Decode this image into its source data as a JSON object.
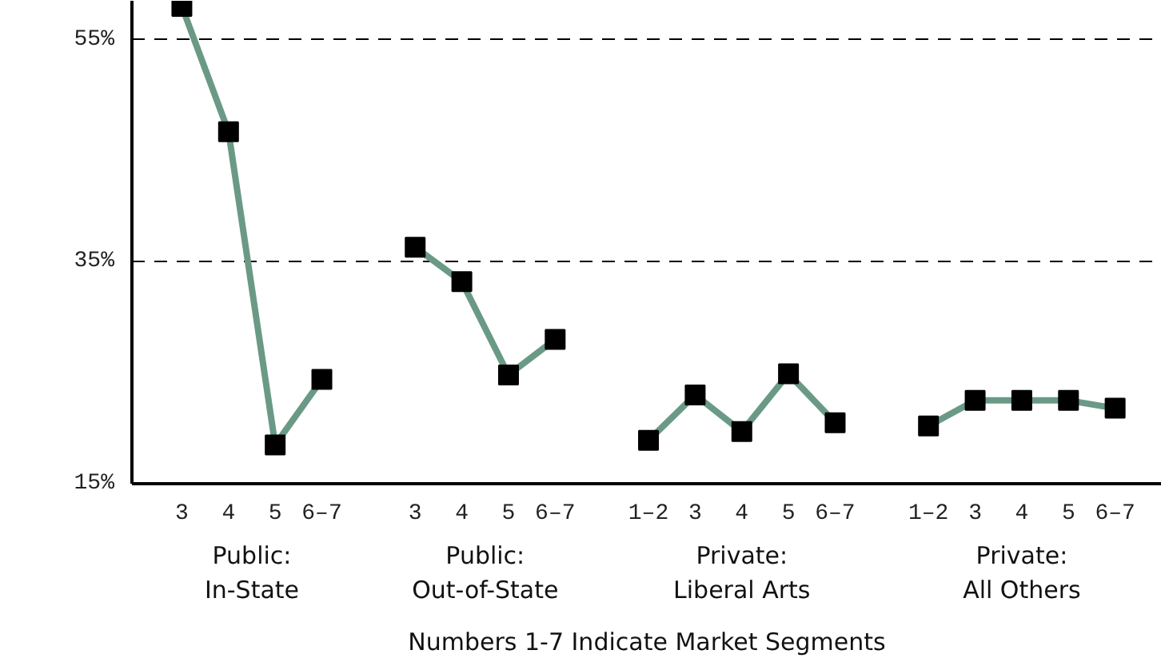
{
  "chart_data": {
    "type": "line",
    "categories": [
      "3",
      "4",
      "5",
      "6–7",
      null,
      "3",
      "4",
      "5",
      "6–7",
      null,
      "1–2",
      "3",
      "4",
      "5",
      "6–7",
      null,
      "1–2",
      "3",
      "4",
      "5",
      "6–7"
    ],
    "series": [
      {
        "color": "#6a9a86",
        "values": [
          58,
          46.7,
          18.5,
          24.4,
          null,
          null,
          null,
          null,
          null,
          null,
          null,
          null,
          null,
          null,
          null,
          null,
          null,
          null,
          null,
          null,
          null
        ]
      },
      {
        "color": "#6a9a86",
        "values": [
          null,
          null,
          null,
          null,
          null,
          36.3,
          33.2,
          24.8,
          28.0,
          null,
          null,
          null,
          null,
          null,
          null,
          null,
          null,
          null,
          null,
          null,
          null
        ]
      },
      {
        "color": "#6a9a86",
        "values": [
          null,
          null,
          null,
          null,
          null,
          null,
          null,
          null,
          null,
          null,
          18.9,
          23.0,
          19.7,
          24.9,
          20.5,
          null,
          null,
          null,
          null,
          null,
          null
        ]
      },
      {
        "color": "#6a9a86",
        "values": [
          null,
          null,
          null,
          null,
          null,
          null,
          null,
          null,
          null,
          null,
          null,
          null,
          null,
          null,
          null,
          null,
          20.2,
          22.5,
          22.5,
          22.5,
          21.8
        ]
      }
    ],
    "annotations": [
      "Public:\nIn-State",
      "Public:\nOut-of-State",
      "Private:\nLiberal Arts",
      "Private:\nAll Others",
      "Numbers 1-7 Indicate Market Segments"
    ],
    "ylim": [
      15,
      58.5
    ],
    "yticks": [
      {
        "value": 15,
        "label": "15%"
      },
      {
        "value": 35,
        "label": "35%"
      },
      {
        "value": 55,
        "label": "55%"
      }
    ],
    "grid": "y",
    "marker": "square",
    "line_style": "solid"
  }
}
